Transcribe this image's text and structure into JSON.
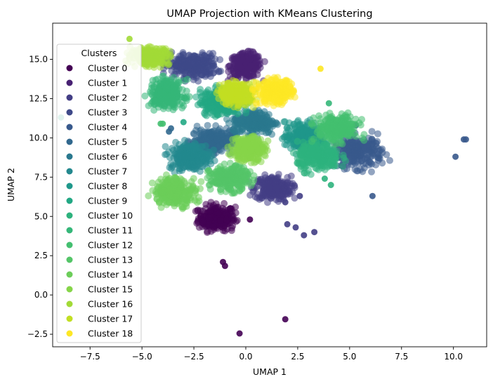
{
  "chart_data": {
    "type": "scatter",
    "title": "UMAP Projection with KMeans Clustering",
    "xlabel": "UMAP 1",
    "ylabel": "UMAP 2",
    "xlim": [
      -9.3,
      11.6
    ],
    "ylim": [
      -3.3,
      17.3
    ],
    "xticks": [
      -7.5,
      -5.0,
      -2.5,
      0.0,
      2.5,
      5.0,
      7.5,
      10.0
    ],
    "xtick_labels": [
      "−7.5",
      "−5.0",
      "−2.5",
      "0.0",
      "2.5",
      "5.0",
      "7.5",
      "10.0"
    ],
    "yticks": [
      -2.5,
      0.0,
      2.5,
      5.0,
      7.5,
      10.0,
      12.5,
      15.0
    ],
    "ytick_labels": [
      "−2.5",
      "0.0",
      "2.5",
      "5.0",
      "7.5",
      "10.0",
      "12.5",
      "15.0"
    ],
    "grid": false,
    "legend": {
      "title": "Clusters",
      "position": "upper-left"
    },
    "series": [
      {
        "name": "Cluster 0",
        "color": "#440154",
        "center": [
          -1.4,
          4.9
        ],
        "spread": [
          1.05,
          0.95
        ],
        "outliers": [
          [
            -1.1,
            2.1
          ],
          [
            -1.0,
            1.85
          ],
          [
            -0.3,
            -2.45
          ],
          [
            1.9,
            -1.55
          ],
          [
            0.2,
            4.8
          ]
        ]
      },
      {
        "name": "Cluster 1",
        "color": "#482173",
        "center": [
          0.0,
          14.6
        ],
        "spread": [
          0.9,
          0.9
        ],
        "outliers": []
      },
      {
        "name": "Cluster 2",
        "color": "#433e85",
        "center": [
          1.3,
          6.8
        ],
        "spread": [
          1.05,
          0.9
        ],
        "outliers": [
          [
            2.0,
            4.5
          ],
          [
            2.4,
            4.3
          ],
          [
            2.8,
            3.8
          ],
          [
            3.3,
            4.0
          ],
          [
            2.6,
            6.3
          ],
          [
            1.9,
            5.9
          ]
        ]
      },
      {
        "name": "Cluster 3",
        "color": "#3e4989",
        "center": [
          -2.6,
          14.6
        ],
        "spread": [
          1.45,
          0.9
        ],
        "outliers": []
      },
      {
        "name": "Cluster 4",
        "color": "#38598c",
        "center": [
          5.4,
          9.1
        ],
        "spread": [
          1.4,
          1.2
        ],
        "outliers": [
          [
            10.5,
            9.9
          ],
          [
            10.6,
            9.9
          ],
          [
            10.1,
            8.8
          ],
          [
            6.1,
            6.3
          ],
          [
            5.3,
            10.8
          ]
        ]
      },
      {
        "name": "Cluster 5",
        "color": "#31688e",
        "center": [
          -1.6,
          9.8
        ],
        "spread": [
          1.2,
          0.9
        ],
        "outliers": [
          [
            -3.7,
            10.4
          ],
          [
            -3.6,
            10.6
          ]
        ]
      },
      {
        "name": "Cluster 6",
        "color": "#2a788e",
        "center": [
          0.4,
          11.0
        ],
        "spread": [
          1.2,
          0.85
        ],
        "outliers": []
      },
      {
        "name": "Cluster 7",
        "color": "#23888e",
        "center": [
          -2.7,
          8.8
        ],
        "spread": [
          1.15,
          1.0
        ],
        "outliers": []
      },
      {
        "name": "Cluster 8",
        "color": "#1f988b",
        "center": [
          2.8,
          10.0
        ],
        "spread": [
          1.1,
          1.15
        ],
        "outliers": []
      },
      {
        "name": "Cluster 9",
        "color": "#22a884",
        "center": [
          -1.2,
          12.3
        ],
        "spread": [
          1.2,
          1.0
        ],
        "outliers": [
          [
            -8.9,
            11.3
          ],
          [
            -3.0,
            11.0
          ]
        ]
      },
      {
        "name": "Cluster 10",
        "color": "#2db27d",
        "center": [
          3.5,
          8.8
        ],
        "spread": [
          1.2,
          1.05
        ],
        "outliers": [
          [
            3.8,
            7.4
          ],
          [
            4.1,
            7.0
          ]
        ]
      },
      {
        "name": "Cluster 11",
        "color": "#35b779",
        "center": [
          -3.8,
          12.8
        ],
        "spread": [
          1.0,
          1.05
        ],
        "outliers": [
          [
            4.0,
            12.2
          ]
        ]
      },
      {
        "name": "Cluster 12",
        "color": "#44bf70",
        "center": [
          4.4,
          10.6
        ],
        "spread": [
          1.2,
          1.0
        ],
        "outliers": [
          [
            -4.0,
            10.9
          ],
          [
            -4.1,
            10.9
          ]
        ]
      },
      {
        "name": "Cluster 13",
        "color": "#54c568",
        "center": [
          -0.8,
          7.4
        ],
        "spread": [
          1.1,
          0.9
        ],
        "outliers": []
      },
      {
        "name": "Cluster 14",
        "color": "#6ccd5a",
        "center": [
          -3.4,
          6.6
        ],
        "spread": [
          1.2,
          1.05
        ],
        "outliers": []
      },
      {
        "name": "Cluster 15",
        "color": "#86d549",
        "center": [
          0.1,
          9.3
        ],
        "spread": [
          0.95,
          0.9
        ],
        "outliers": []
      },
      {
        "name": "Cluster 16",
        "color": "#a2da37",
        "center": [
          -4.6,
          15.2
        ],
        "spread": [
          1.1,
          0.65
        ],
        "outliers": [
          [
            -5.6,
            16.3
          ]
        ]
      },
      {
        "name": "Cluster 17",
        "color": "#c2df23",
        "center": [
          -0.4,
          12.8
        ],
        "spread": [
          1.0,
          0.85
        ],
        "outliers": []
      },
      {
        "name": "Cluster 18",
        "color": "#fde725",
        "center": [
          1.4,
          12.9
        ],
        "spread": [
          1.0,
          0.9
        ],
        "outliers": [
          [
            3.6,
            14.4
          ]
        ]
      }
    ]
  }
}
